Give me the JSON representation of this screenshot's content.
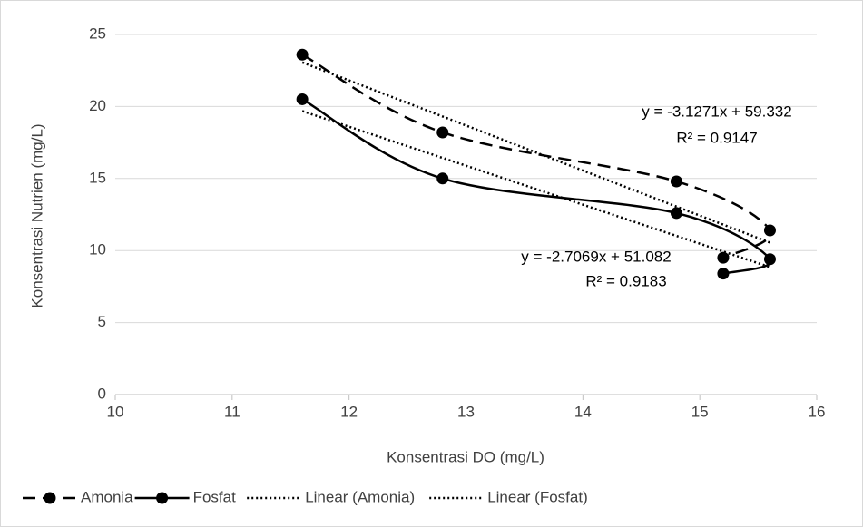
{
  "chart_data": {
    "type": "scatter",
    "xlabel": "Konsentrasi DO (mg/L)",
    "ylabel": "Konsentrasi Nutrien (mg/L)",
    "xlim": [
      10,
      16
    ],
    "xticks": [
      10,
      11,
      12,
      13,
      14,
      15,
      16
    ],
    "ylim": [
      0,
      25
    ],
    "yticks": [
      0,
      5,
      10,
      15,
      20,
      25
    ],
    "grid": true,
    "legend": "bottom",
    "series": [
      {
        "name": "Amonia",
        "color": "#000000",
        "style": "dashed",
        "marker": true,
        "smooth": true,
        "x": [
          11.6,
          12.8,
          14.8,
          15.6,
          15.2
        ],
        "values": [
          23.6,
          18.2,
          14.8,
          11.4,
          9.5
        ]
      },
      {
        "name": "Fosfat",
        "color": "#000000",
        "style": "solid",
        "marker": true,
        "smooth": true,
        "x": [
          11.6,
          12.8,
          14.8,
          15.6,
          15.2
        ],
        "values": [
          20.5,
          15.0,
          12.6,
          9.4,
          8.4
        ]
      },
      {
        "name": "Linear (Amonia)",
        "color": "#000000",
        "style": "dotted",
        "marker": false,
        "smooth": false,
        "x": [
          11.6,
          15.6
        ],
        "values": [
          23.06,
          10.55
        ]
      },
      {
        "name": "Linear (Fosfat)",
        "color": "#000000",
        "style": "dotted",
        "marker": false,
        "smooth": false,
        "x": [
          11.6,
          15.6
        ],
        "values": [
          19.68,
          8.85
        ]
      }
    ],
    "annotations": [
      "y = -3.1271x + 59.332",
      "R² = 0.9147",
      "y = -2.7069x + 51.082",
      "R² = 0.9183"
    ]
  }
}
